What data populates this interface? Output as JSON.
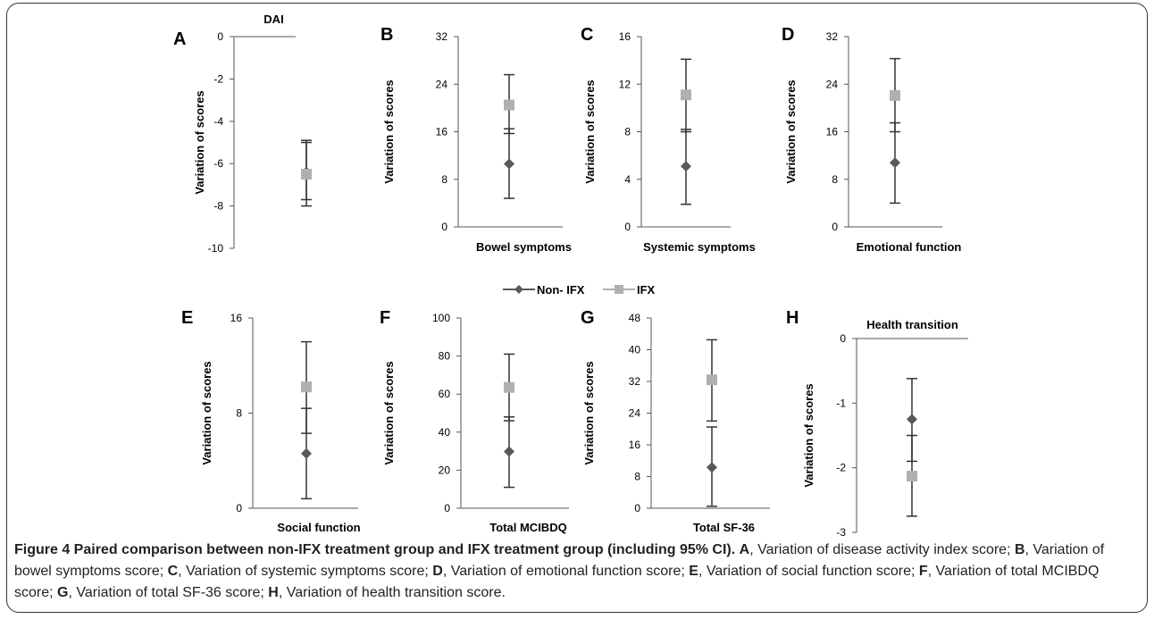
{
  "colors": {
    "non_ifx": "#595959",
    "ifx": "#b0b0b0",
    "axis": "#555555",
    "error_bar": "#333333"
  },
  "legend": {
    "non_ifx": "Non- IFX",
    "ifx": "IFX"
  },
  "chart_data": [
    {
      "type": "scatter",
      "panel": "A",
      "title": "DAI",
      "xlabel": "",
      "ylabel": "Variation of scores",
      "ylim": [
        -10,
        0
      ],
      "yticks": [
        0,
        -2,
        -4,
        -6,
        -8,
        -10
      ],
      "series": [
        {
          "name": "Non- IFX",
          "value": -6.4,
          "ci": [
            -7.7,
            -5.0
          ]
        },
        {
          "name": "IFX",
          "value": -6.5,
          "ci": [
            -8.0,
            -4.9
          ]
        }
      ]
    },
    {
      "type": "scatter",
      "panel": "B",
      "title": "",
      "xlabel": "Bowel symptoms",
      "ylabel": "Variation of scores",
      "ylim": [
        0,
        32
      ],
      "yticks": [
        0,
        8,
        16,
        24,
        32
      ],
      "series": [
        {
          "name": "Non- IFX",
          "value": 10.6,
          "ci": [
            4.8,
            16.5
          ]
        },
        {
          "name": "IFX",
          "value": 20.5,
          "ci": [
            15.7,
            25.6
          ]
        }
      ]
    },
    {
      "type": "scatter",
      "panel": "C",
      "title": "",
      "xlabel": "Systemic symptoms",
      "ylabel": "Variation of scores",
      "ylim": [
        0,
        16
      ],
      "yticks": [
        0,
        4,
        8,
        12,
        16
      ],
      "series": [
        {
          "name": "Non- IFX",
          "value": 5.1,
          "ci": [
            1.9,
            8.2
          ]
        },
        {
          "name": "IFX",
          "value": 11.1,
          "ci": [
            8.0,
            14.1
          ]
        }
      ]
    },
    {
      "type": "scatter",
      "panel": "D",
      "title": "",
      "xlabel": "Emotional function",
      "ylabel": "Variation of scores",
      "ylim": [
        0,
        32
      ],
      "yticks": [
        0,
        8,
        16,
        24,
        32
      ],
      "series": [
        {
          "name": "Non- IFX",
          "value": 10.8,
          "ci": [
            4.0,
            17.5
          ]
        },
        {
          "name": "IFX",
          "value": 22.1,
          "ci": [
            16.0,
            28.3
          ]
        }
      ]
    },
    {
      "type": "scatter",
      "panel": "E",
      "title": "",
      "xlabel": "Social function",
      "ylabel": "Variation of scores",
      "ylim": [
        0,
        16
      ],
      "yticks": [
        0,
        8,
        16
      ],
      "series": [
        {
          "name": "Non- IFX",
          "value": 4.6,
          "ci": [
            0.8,
            8.4
          ]
        },
        {
          "name": "IFX",
          "value": 10.2,
          "ci": [
            6.3,
            14.0
          ]
        }
      ]
    },
    {
      "type": "scatter",
      "panel": "F",
      "title": "",
      "xlabel": "Total MCIBDQ",
      "ylabel": "Variation of scores",
      "ylim": [
        0,
        100
      ],
      "yticks": [
        0,
        20,
        40,
        60,
        80,
        100
      ],
      "series": [
        {
          "name": "Non- IFX",
          "value": 29.8,
          "ci": [
            11.0,
            48.0
          ]
        },
        {
          "name": "IFX",
          "value": 63.5,
          "ci": [
            46.0,
            81.0
          ]
        }
      ]
    },
    {
      "type": "scatter",
      "panel": "G",
      "title": "",
      "xlabel": "Total SF-36",
      "ylabel": "Variation of scores",
      "ylim": [
        0,
        48
      ],
      "yticks": [
        0,
        8,
        16,
        24,
        32,
        40,
        48
      ],
      "series": [
        {
          "name": "Non- IFX",
          "value": 10.3,
          "ci": [
            0.5,
            20.5
          ]
        },
        {
          "name": "IFX",
          "value": 32.4,
          "ci": [
            22.0,
            42.5
          ]
        }
      ]
    },
    {
      "type": "scatter",
      "panel": "H",
      "title": "Health transition",
      "xlabel": "",
      "ylabel": "Variation of scores",
      "ylim": [
        -3,
        0
      ],
      "yticks": [
        0,
        -1,
        -2,
        -3
      ],
      "series": [
        {
          "name": "Non- IFX",
          "value": -1.25,
          "ci": [
            -1.9,
            -0.62
          ]
        },
        {
          "name": "IFX",
          "value": -2.13,
          "ci": [
            -2.75,
            -1.5
          ]
        }
      ]
    }
  ],
  "caption": {
    "title": "Figure 4 Paired comparison between non-IFX treatment group and IFX treatment group (including 95% CI).",
    "items": [
      {
        "letter": "A",
        "text": ", Variation of disease activity index score; "
      },
      {
        "letter": "B",
        "text": ", Variation of bowel symptoms score; "
      },
      {
        "letter": "C",
        "text": ", Variation of systemic symptoms score; "
      },
      {
        "letter": "D",
        "text": ", Variation of emotional function score; "
      },
      {
        "letter": "E",
        "text": ", Variation of social function score; "
      },
      {
        "letter": "F",
        "text": ", Variation of total MCIBDQ score; "
      },
      {
        "letter": "G",
        "text": ", Variation of total SF-36 score; "
      },
      {
        "letter": "H",
        "text": ", Variation of health transition score."
      }
    ]
  }
}
